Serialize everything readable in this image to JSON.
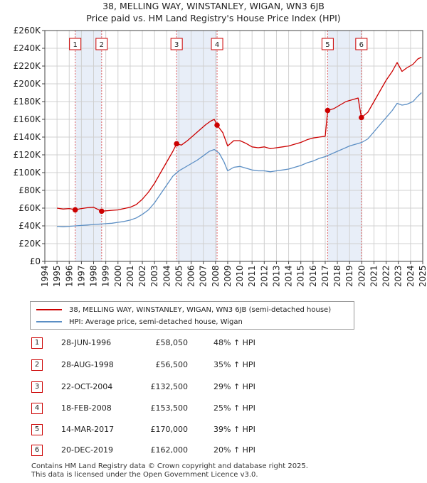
{
  "title": {
    "line1": "38, MELLING WAY, WINSTANLEY, WIGAN, WN3 6JB",
    "line2": "Price paid vs. HM Land Registry's House Price Index (HPI)"
  },
  "colors": {
    "property": "#cc0000",
    "hpi": "#5b8ec4",
    "band": "#e8eef8",
    "grid": "#d0d0d0",
    "sale_line": "#e06060"
  },
  "chart_data": {
    "type": "line",
    "xlim": [
      1994,
      2025
    ],
    "ylim": [
      0,
      260000
    ],
    "y_ticks": [
      0,
      20000,
      40000,
      60000,
      80000,
      100000,
      120000,
      140000,
      160000,
      180000,
      200000,
      220000,
      240000,
      260000
    ],
    "y_tick_labels": [
      "£0",
      "£20K",
      "£40K",
      "£60K",
      "£80K",
      "£100K",
      "£120K",
      "£140K",
      "£160K",
      "£180K",
      "£200K",
      "£220K",
      "£240K",
      "£260K"
    ],
    "x_ticks": [
      1994,
      1995,
      1996,
      1997,
      1998,
      1999,
      2000,
      2001,
      2002,
      2003,
      2004,
      2005,
      2006,
      2007,
      2008,
      2009,
      2010,
      2011,
      2012,
      2013,
      2014,
      2015,
      2016,
      2017,
      2018,
      2019,
      2020,
      2021,
      2022,
      2023,
      2024,
      2025
    ],
    "x_tick_labels": [
      "1994",
      "1995",
      "1996",
      "1997",
      "1998",
      "1999",
      "2000",
      "2001",
      "2002",
      "2003",
      "2004",
      "2005",
      "2006",
      "2007",
      "2008",
      "2009",
      "2010",
      "2011",
      "2012",
      "2013",
      "2014",
      "2015",
      "2016",
      "2017",
      "2018",
      "2019",
      "2020",
      "2021",
      "2022",
      "2023",
      "2024",
      "2025"
    ],
    "grid": true,
    "legend_position": "below",
    "series": [
      {
        "name": "38, MELLING WAY, WINSTANLEY, WIGAN, WN3 6JB (semi-detached house)",
        "color": "#cc0000",
        "points": [
          [
            1995.0,
            60000
          ],
          [
            1995.5,
            59000
          ],
          [
            1996.0,
            59500
          ],
          [
            1996.49,
            58050
          ],
          [
            1997.0,
            59500
          ],
          [
            1997.5,
            60500
          ],
          [
            1998.0,
            61000
          ],
          [
            1998.66,
            56500
          ],
          [
            1999.0,
            57000
          ],
          [
            1999.5,
            57500
          ],
          [
            2000.0,
            58000
          ],
          [
            2000.5,
            59500
          ],
          [
            2001.0,
            61000
          ],
          [
            2001.5,
            64000
          ],
          [
            2002.0,
            70000
          ],
          [
            2002.5,
            78000
          ],
          [
            2003.0,
            88000
          ],
          [
            2003.5,
            100000
          ],
          [
            2004.0,
            112000
          ],
          [
            2004.5,
            124000
          ],
          [
            2004.81,
            132500
          ],
          [
            2005.2,
            131000
          ],
          [
            2005.7,
            136000
          ],
          [
            2006.2,
            142000
          ],
          [
            2006.7,
            148000
          ],
          [
            2007.2,
            154000
          ],
          [
            2007.6,
            158000
          ],
          [
            2007.9,
            160000
          ],
          [
            2008.13,
            153500
          ],
          [
            2008.6,
            145000
          ],
          [
            2009.0,
            130000
          ],
          [
            2009.5,
            136000
          ],
          [
            2010.0,
            136000
          ],
          [
            2010.5,
            133000
          ],
          [
            2011.0,
            129000
          ],
          [
            2011.5,
            128000
          ],
          [
            2012.0,
            129000
          ],
          [
            2012.5,
            127000
          ],
          [
            2013.0,
            128000
          ],
          [
            2013.5,
            129000
          ],
          [
            2014.0,
            130000
          ],
          [
            2014.5,
            132000
          ],
          [
            2015.0,
            134000
          ],
          [
            2015.5,
            137000
          ],
          [
            2016.0,
            139000
          ],
          [
            2016.5,
            140000
          ],
          [
            2017.0,
            141000
          ],
          [
            2017.2,
            170000
          ],
          [
            2017.7,
            172000
          ],
          [
            2018.2,
            176000
          ],
          [
            2018.7,
            180000
          ],
          [
            2019.2,
            182000
          ],
          [
            2019.7,
            184000
          ],
          [
            2019.97,
            162000
          ],
          [
            2020.5,
            168000
          ],
          [
            2021.0,
            180000
          ],
          [
            2021.5,
            192000
          ],
          [
            2022.0,
            204000
          ],
          [
            2022.5,
            214000
          ],
          [
            2022.9,
            224000
          ],
          [
            2023.3,
            214000
          ],
          [
            2023.7,
            218000
          ],
          [
            2024.2,
            222000
          ],
          [
            2024.6,
            228000
          ],
          [
            2024.9,
            230000
          ]
        ]
      },
      {
        "name": "HPI: Average price, semi-detached house, Wigan",
        "color": "#5b8ec4",
        "points": [
          [
            1995.0,
            39500
          ],
          [
            1995.5,
            39000
          ],
          [
            1996.0,
            39500
          ],
          [
            1996.5,
            40000
          ],
          [
            1997.0,
            40500
          ],
          [
            1997.5,
            41000
          ],
          [
            1998.0,
            41500
          ],
          [
            1998.5,
            42000
          ],
          [
            1999.0,
            42500
          ],
          [
            1999.5,
            43000
          ],
          [
            2000.0,
            44000
          ],
          [
            2000.5,
            45000
          ],
          [
            2001.0,
            46500
          ],
          [
            2001.5,
            49000
          ],
          [
            2002.0,
            53000
          ],
          [
            2002.5,
            58000
          ],
          [
            2003.0,
            66000
          ],
          [
            2003.5,
            76000
          ],
          [
            2004.0,
            86000
          ],
          [
            2004.5,
            96000
          ],
          [
            2005.0,
            102000
          ],
          [
            2005.5,
            106000
          ],
          [
            2006.0,
            110000
          ],
          [
            2006.5,
            114000
          ],
          [
            2007.0,
            119000
          ],
          [
            2007.5,
            124000
          ],
          [
            2007.9,
            126000
          ],
          [
            2008.3,
            122000
          ],
          [
            2008.7,
            112000
          ],
          [
            2009.0,
            102000
          ],
          [
            2009.5,
            106000
          ],
          [
            2010.0,
            107000
          ],
          [
            2010.5,
            105000
          ],
          [
            2011.0,
            103000
          ],
          [
            2011.5,
            102000
          ],
          [
            2012.0,
            102000
          ],
          [
            2012.5,
            101000
          ],
          [
            2013.0,
            102000
          ],
          [
            2013.5,
            103000
          ],
          [
            2014.0,
            104000
          ],
          [
            2014.5,
            106000
          ],
          [
            2015.0,
            108000
          ],
          [
            2015.5,
            111000
          ],
          [
            2016.0,
            113000
          ],
          [
            2016.5,
            116000
          ],
          [
            2017.0,
            118000
          ],
          [
            2017.5,
            121000
          ],
          [
            2018.0,
            124000
          ],
          [
            2018.5,
            127000
          ],
          [
            2019.0,
            130000
          ],
          [
            2019.5,
            132000
          ],
          [
            2020.0,
            134000
          ],
          [
            2020.5,
            138000
          ],
          [
            2021.0,
            146000
          ],
          [
            2021.5,
            154000
          ],
          [
            2022.0,
            162000
          ],
          [
            2022.5,
            170000
          ],
          [
            2022.9,
            178000
          ],
          [
            2023.3,
            176000
          ],
          [
            2023.7,
            177000
          ],
          [
            2024.2,
            180000
          ],
          [
            2024.6,
            186000
          ],
          [
            2024.9,
            190000
          ]
        ]
      }
    ],
    "bands": [
      [
        1996.49,
        1998.66
      ],
      [
        2004.81,
        2008.13
      ],
      [
        2017.2,
        2019.97
      ]
    ],
    "sales": [
      {
        "label": "1",
        "x": 1996.49,
        "y": 58050
      },
      {
        "label": "2",
        "x": 1998.66,
        "y": 56500
      },
      {
        "label": "3",
        "x": 2004.81,
        "y": 132500
      },
      {
        "label": "4",
        "x": 2008.13,
        "y": 153500
      },
      {
        "label": "5",
        "x": 2017.2,
        "y": 170000
      },
      {
        "label": "6",
        "x": 2019.97,
        "y": 162000
      }
    ]
  },
  "legend": {
    "property_label": "38, MELLING WAY, WINSTANLEY, WIGAN, WN3 6JB (semi-detached house)",
    "hpi_label": "HPI: Average price, semi-detached house, Wigan"
  },
  "transactions": [
    {
      "num": "1",
      "date": "28-JUN-1996",
      "price": "£58,050",
      "hpi": "48% ↑ HPI"
    },
    {
      "num": "2",
      "date": "28-AUG-1998",
      "price": "£56,500",
      "hpi": "35% ↑ HPI"
    },
    {
      "num": "3",
      "date": "22-OCT-2004",
      "price": "£132,500",
      "hpi": "29% ↑ HPI"
    },
    {
      "num": "4",
      "date": "18-FEB-2008",
      "price": "£153,500",
      "hpi": "25% ↑ HPI"
    },
    {
      "num": "5",
      "date": "14-MAR-2017",
      "price": "£170,000",
      "hpi": "39% ↑ HPI"
    },
    {
      "num": "6",
      "date": "20-DEC-2019",
      "price": "£162,000",
      "hpi": "20% ↑ HPI"
    }
  ],
  "footer": {
    "line1": "Contains HM Land Registry data © Crown copyright and database right 2025.",
    "line2": "This data is licensed under the Open Government Licence v3.0."
  }
}
